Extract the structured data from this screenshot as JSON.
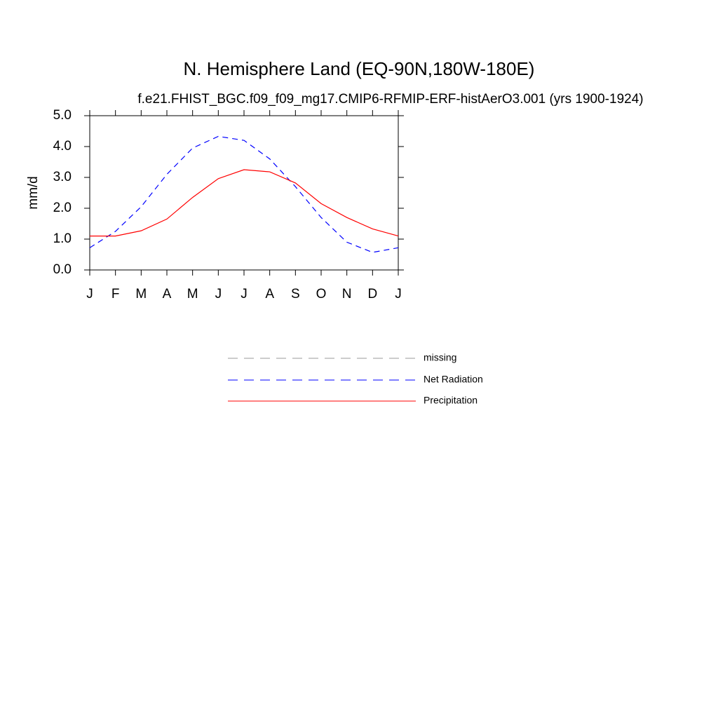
{
  "chart_data": {
    "type": "line",
    "title": "N. Hemisphere Land (EQ-90N,180W-180E)",
    "subtitle": "f.e21.FHIST_BGC.f09_f09_mg17.CMIP6-RFMIP-ERF-histAerO3.001 (yrs 1900-1924)",
    "y_label": "mm/d",
    "categories": [
      "J",
      "F",
      "M",
      "A",
      "M",
      "J",
      "J",
      "A",
      "S",
      "O",
      "N",
      "D",
      "J"
    ],
    "series": [
      {
        "name": "missing",
        "color": "#999999",
        "dash": "14,9",
        "values": [
          null,
          null,
          null,
          null,
          null,
          null,
          null,
          null,
          null,
          null,
          null,
          null,
          null
        ]
      },
      {
        "name": "Net Radiation",
        "color": "#0000ff",
        "dash": "8,6",
        "values": [
          0.72,
          1.25,
          2.05,
          3.1,
          3.95,
          4.33,
          4.2,
          3.6,
          2.7,
          1.7,
          0.9,
          0.57,
          0.72
        ]
      },
      {
        "name": "Precipitation",
        "color": "#ff0000",
        "dash": "none",
        "values": [
          1.1,
          1.1,
          1.27,
          1.65,
          2.35,
          2.96,
          3.25,
          3.18,
          2.82,
          2.15,
          1.7,
          1.33,
          1.1
        ]
      }
    ],
    "ylim": [
      0,
      5
    ],
    "yticks": [
      {
        "value": 0,
        "label": "0.0"
      },
      {
        "value": 1,
        "label": "1.0"
      },
      {
        "value": 2,
        "label": "2.0"
      },
      {
        "value": 3,
        "label": "3.0"
      },
      {
        "value": 4,
        "label": "4.0"
      },
      {
        "value": 5,
        "label": "5.0"
      }
    ],
    "grid": false
  }
}
